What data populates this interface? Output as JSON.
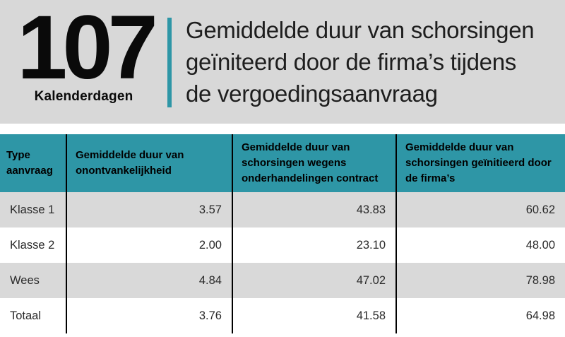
{
  "banner": {
    "stat_value": "107",
    "stat_label": "Kalenderdagen",
    "title_lines": [
      "Gemiddelde duur van schorsingen",
      "geïniteerd door de firma’s tijdens",
      "de vergoedingsaanvraag"
    ]
  },
  "table": {
    "columns": [
      "Type aanvraag",
      "Gemiddelde duur van onontvankelijkheid",
      "Gemiddelde duur van schorsingen wegens onderhandelingen contract",
      "Gemiddelde duur van schorsingen geïnitieerd door de firma’s"
    ],
    "rows": [
      {
        "label": "Klasse 1",
        "values": [
          "3.57",
          "43.83",
          "60.62"
        ]
      },
      {
        "label": "Klasse 2",
        "values": [
          "2.00",
          "23.10",
          "48.00"
        ]
      },
      {
        "label": "Wees",
        "values": [
          "4.84",
          "47.02",
          "78.98"
        ]
      },
      {
        "label": "Totaal",
        "values": [
          "3.76",
          "41.58",
          "64.98"
        ]
      }
    ]
  },
  "chart_data": {
    "type": "table",
    "title": "Gemiddelde duur van schorsingen geïniteerd door de firma’s tijdens de vergoedingsaanvraag",
    "headline_stat": {
      "value": 107,
      "unit": "Kalenderdagen"
    },
    "columns": [
      "Type aanvraag",
      "Gemiddelde duur van onontvankelijkheid",
      "Gemiddelde duur van schorsingen wegens onderhandelingen contract",
      "Gemiddelde duur van schorsingen geïnitieerd door de firma’s"
    ],
    "rows": [
      [
        "Klasse 1",
        3.57,
        43.83,
        60.62
      ],
      [
        "Klasse 2",
        2.0,
        23.1,
        48.0
      ],
      [
        "Wees",
        4.84,
        47.02,
        78.98
      ],
      [
        "Totaal",
        3.76,
        41.58,
        64.98
      ]
    ]
  },
  "colors": {
    "accent_teal": "#2E96A6",
    "banner_gray": "#D8D8D8",
    "row_gray": "#D9D9D9",
    "separator_black": "#000000"
  }
}
